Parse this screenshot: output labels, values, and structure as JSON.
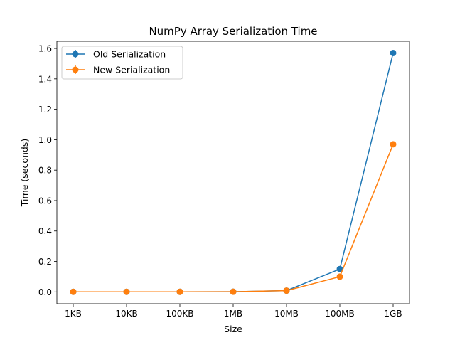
{
  "chart_data": {
    "type": "line",
    "title": "NumPy Array Serialization Time",
    "xlabel": "Size",
    "ylabel": "Time (seconds)",
    "categories": [
      "1KB",
      "10KB",
      "100KB",
      "1MB",
      "10MB",
      "100MB",
      "1GB"
    ],
    "ylim": [
      -0.078,
      1.647
    ],
    "yticks": [
      0.0,
      0.2,
      0.4,
      0.6,
      0.8,
      1.0,
      1.2,
      1.4,
      1.6
    ],
    "ytick_labels": [
      "0.0",
      "0.2",
      "0.4",
      "0.6",
      "0.8",
      "1.0",
      "1.2",
      "1.4",
      "1.6"
    ],
    "grid": false,
    "legend_position": "top-left",
    "series": [
      {
        "name": "Old Serialization",
        "color": "#1f77b4",
        "marker": "circle",
        "error_bars": true,
        "values": [
          0.0005,
          0.0005,
          0.0005,
          0.001,
          0.008,
          0.15,
          1.57
        ]
      },
      {
        "name": "New Serialization",
        "color": "#ff7f0e",
        "marker": "circle",
        "error_bars": true,
        "values": [
          0.0005,
          0.0005,
          0.0005,
          0.0008,
          0.008,
          0.1,
          0.97
        ]
      }
    ]
  }
}
